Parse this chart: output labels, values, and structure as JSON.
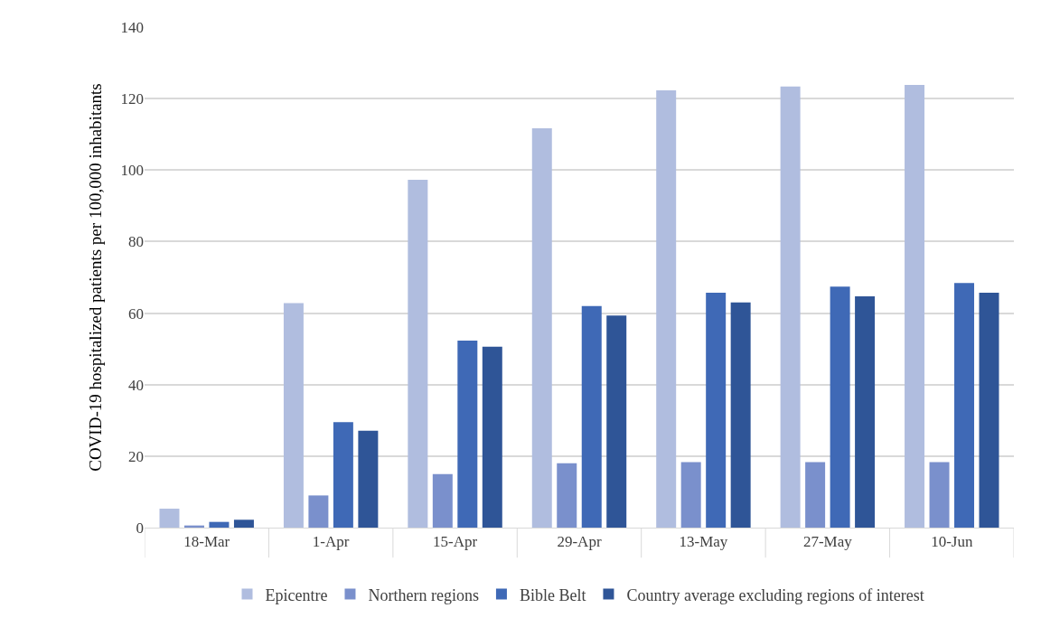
{
  "chart_data": {
    "type": "bar",
    "ylabel": "COVID-19 hospitalized patients per 100,000 inhabitants",
    "categories": [
      "18-Mar",
      "1-Apr",
      "15-Apr",
      "29-Apr",
      "13-May",
      "27-May",
      "10-Jun"
    ],
    "series": [
      {
        "name": "Epicentre",
        "color": "#b0bddf",
        "values": [
          5.3,
          62.8,
          97.3,
          111.7,
          122.3,
          123.4,
          123.8
        ]
      },
      {
        "name": "Northern regions",
        "color": "#7a90cc",
        "values": [
          0.6,
          9,
          15,
          18,
          18.3,
          18.3,
          18.3
        ]
      },
      {
        "name": "Bible Belt",
        "color": "#3f69b6",
        "values": [
          1.6,
          29.5,
          52.3,
          62,
          65.7,
          67.4,
          68.4
        ]
      },
      {
        "name": "Country average excluding regions of interest",
        "color": "#2f5597",
        "values": [
          2.2,
          27.1,
          50.6,
          59.3,
          63,
          64.7,
          65.7
        ]
      }
    ],
    "ylim": [
      0,
      140
    ],
    "yticks": [
      0,
      20,
      40,
      60,
      80,
      100,
      120,
      140
    ],
    "grid": "y",
    "legend": "bottom"
  }
}
